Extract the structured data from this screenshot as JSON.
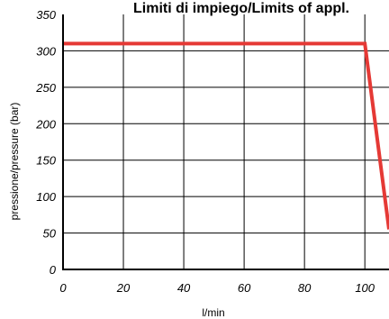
{
  "chart_data": {
    "type": "line",
    "title": "Limiti di impiego/Limits of appl.",
    "xlabel": "l/min",
    "ylabel": "pressione/pressure (bar)",
    "x_ticks": [
      "0",
      "20",
      "40",
      "60",
      "80",
      "100"
    ],
    "y_ticks": [
      "0",
      "50",
      "100",
      "150",
      "200",
      "250",
      "300",
      "350"
    ],
    "xlim": [
      0,
      108
    ],
    "ylim": [
      0,
      350
    ],
    "grid": true,
    "series": [
      {
        "color": "#e53935",
        "x": [
          0,
          100,
          108
        ],
        "y": [
          310,
          310,
          55
        ]
      }
    ],
    "colors": {
      "grid": "#000000",
      "axis": "#000000"
    }
  }
}
